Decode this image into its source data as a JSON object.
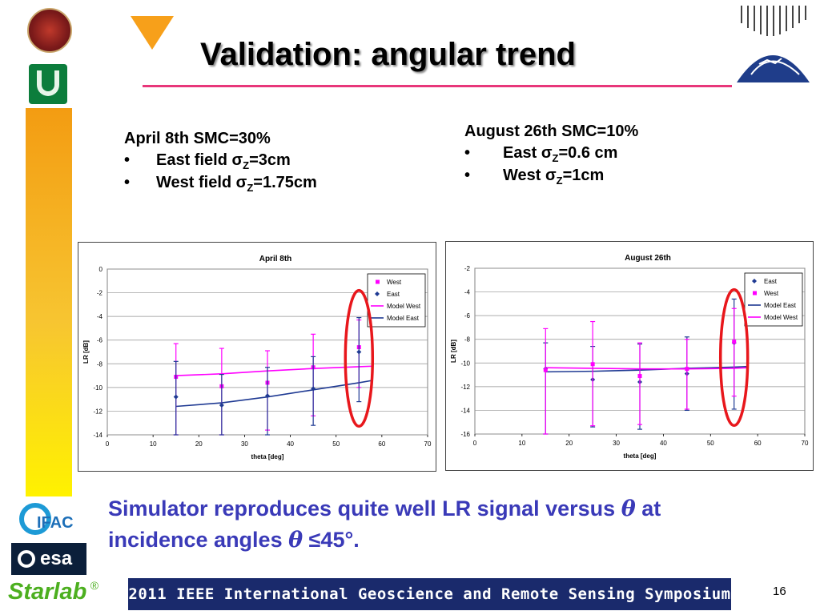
{
  "slide": {
    "title": "Validation: angular trend",
    "page_number": "16",
    "footer": "2011 IEEE International Geoscience and Remote Sensing Symposium",
    "conclusion_line1": "Simulator reproduces quite well LR signal versus",
    "conclusion_theta": "θ",
    "conclusion_at": "at",
    "conclusion_line2": "incidence angles",
    "conclusion_theta2": "θ",
    "conclusion_end": "≤45°.",
    "accent_colors": {
      "title_rule": "#e8367a",
      "conclusion": "#3a3ab8",
      "footer_band": "#1a2a6c",
      "sidebar_top": "#f39c12",
      "sidebar_bottom": "#fff200"
    }
  },
  "left_block": {
    "head": "April 8th  SMC=30%",
    "bullet": "•",
    "item1_pre": "East field ",
    "item1_sigma": "σ",
    "item1_sub": "Z",
    "item1_post": "=3cm",
    "item2_pre": "West field ",
    "item2_sigma": "σ",
    "item2_sub": "Z",
    "item2_post": "=1.75cm"
  },
  "right_block": {
    "head": "August 26th  SMC=10%",
    "bullet": "•",
    "item1_pre": "East ",
    "item1_sigma": "σ",
    "item1_sub": "Z",
    "item1_post": "=0.6 cm",
    "item2_pre": "West ",
    "item2_sigma": "σ",
    "item2_sub": "Z",
    "item2_post": "=1cm"
  },
  "logos": {
    "ifac": "IFAC",
    "esa": "esa",
    "starlab": "Starlab",
    "registered": "®"
  },
  "chart_data": [
    {
      "type": "scatter",
      "title": "April 8th",
      "xlabel": "theta [deg]",
      "ylabel": "LR [dB]",
      "xlim": [
        0,
        70
      ],
      "ylim": [
        -14,
        0
      ],
      "xticks": [
        0,
        10,
        20,
        30,
        40,
        50,
        60,
        70
      ],
      "yticks": [
        0,
        -2,
        -4,
        -6,
        -8,
        -10,
        -12,
        -14
      ],
      "grid": true,
      "legend_position": "top-right",
      "highlight": "red ellipse around theta=55",
      "series": [
        {
          "name": "West",
          "kind": "points",
          "color": "#ff00ff",
          "x": [
            15,
            25,
            35,
            45,
            55
          ],
          "y": [
            -9.1,
            -9.9,
            -9.6,
            -8.3,
            -6.6
          ],
          "err_low": [
            -14.0,
            -14.0,
            -13.6,
            -12.4,
            -10.0
          ],
          "err_high": [
            -6.3,
            -6.7,
            -6.9,
            -5.5,
            -4.3
          ]
        },
        {
          "name": "East",
          "kind": "points",
          "color": "#1f3a93",
          "x": [
            15,
            25,
            35,
            45,
            55
          ],
          "y": [
            -10.8,
            -11.5,
            -10.7,
            -10.1,
            -7.0
          ],
          "err_low": [
            -14.0,
            -14.0,
            -14.0,
            -13.2,
            -11.2
          ],
          "err_high": [
            -7.8,
            -8.9,
            -8.3,
            -7.4,
            -4.1
          ]
        },
        {
          "name": "Model West",
          "kind": "line",
          "color": "#ff00ff",
          "x": [
            15,
            25,
            35,
            45,
            55,
            58
          ],
          "y": [
            -9.0,
            -8.85,
            -8.6,
            -8.4,
            -8.25,
            -8.2
          ]
        },
        {
          "name": "Model East",
          "kind": "line",
          "color": "#1f3a93",
          "x": [
            15,
            25,
            35,
            45,
            55,
            58
          ],
          "y": [
            -11.6,
            -11.3,
            -10.8,
            -10.2,
            -9.6,
            -9.4
          ]
        }
      ]
    },
    {
      "type": "scatter",
      "title": "August 26th",
      "xlabel": "theta [deg]",
      "ylabel": "LR [dB]",
      "xlim": [
        0,
        70
      ],
      "ylim": [
        -16,
        -2
      ],
      "xticks": [
        0,
        10,
        20,
        30,
        40,
        50,
        60,
        70
      ],
      "yticks": [
        -2,
        -4,
        -6,
        -8,
        -10,
        -12,
        -14,
        -16
      ],
      "grid": true,
      "legend_position": "top-right",
      "highlight": "red ellipse around theta=55",
      "series": [
        {
          "name": "East",
          "kind": "points",
          "color": "#1f3a93",
          "x": [
            15,
            25,
            35,
            45,
            55
          ],
          "y": [
            -10.5,
            -11.4,
            -11.6,
            -10.9,
            -8.3
          ],
          "err_low": [
            -16.0,
            -15.4,
            -15.6,
            -14.0,
            -13.9
          ],
          "err_high": [
            -8.3,
            -8.6,
            -8.4,
            -7.8,
            -4.6
          ]
        },
        {
          "name": "West",
          "kind": "points",
          "color": "#ff00ff",
          "x": [
            15,
            25,
            35,
            45,
            55
          ],
          "y": [
            -10.6,
            -10.1,
            -11.1,
            -10.5,
            -8.2
          ],
          "err_low": [
            -16.0,
            -15.3,
            -15.2,
            -13.9,
            -12.8
          ],
          "err_high": [
            -7.1,
            -6.5,
            -8.3,
            -8.0,
            -5.4
          ]
        },
        {
          "name": "Model East",
          "kind": "line",
          "color": "#1f3a93",
          "x": [
            15,
            25,
            35,
            45,
            55,
            58
          ],
          "y": [
            -10.75,
            -10.7,
            -10.6,
            -10.45,
            -10.35,
            -10.3
          ]
        },
        {
          "name": "Model West",
          "kind": "line",
          "color": "#ff00ff",
          "x": [
            15,
            25,
            35,
            45,
            55,
            58
          ],
          "y": [
            -10.4,
            -10.45,
            -10.5,
            -10.5,
            -10.45,
            -10.4
          ]
        }
      ]
    }
  ]
}
